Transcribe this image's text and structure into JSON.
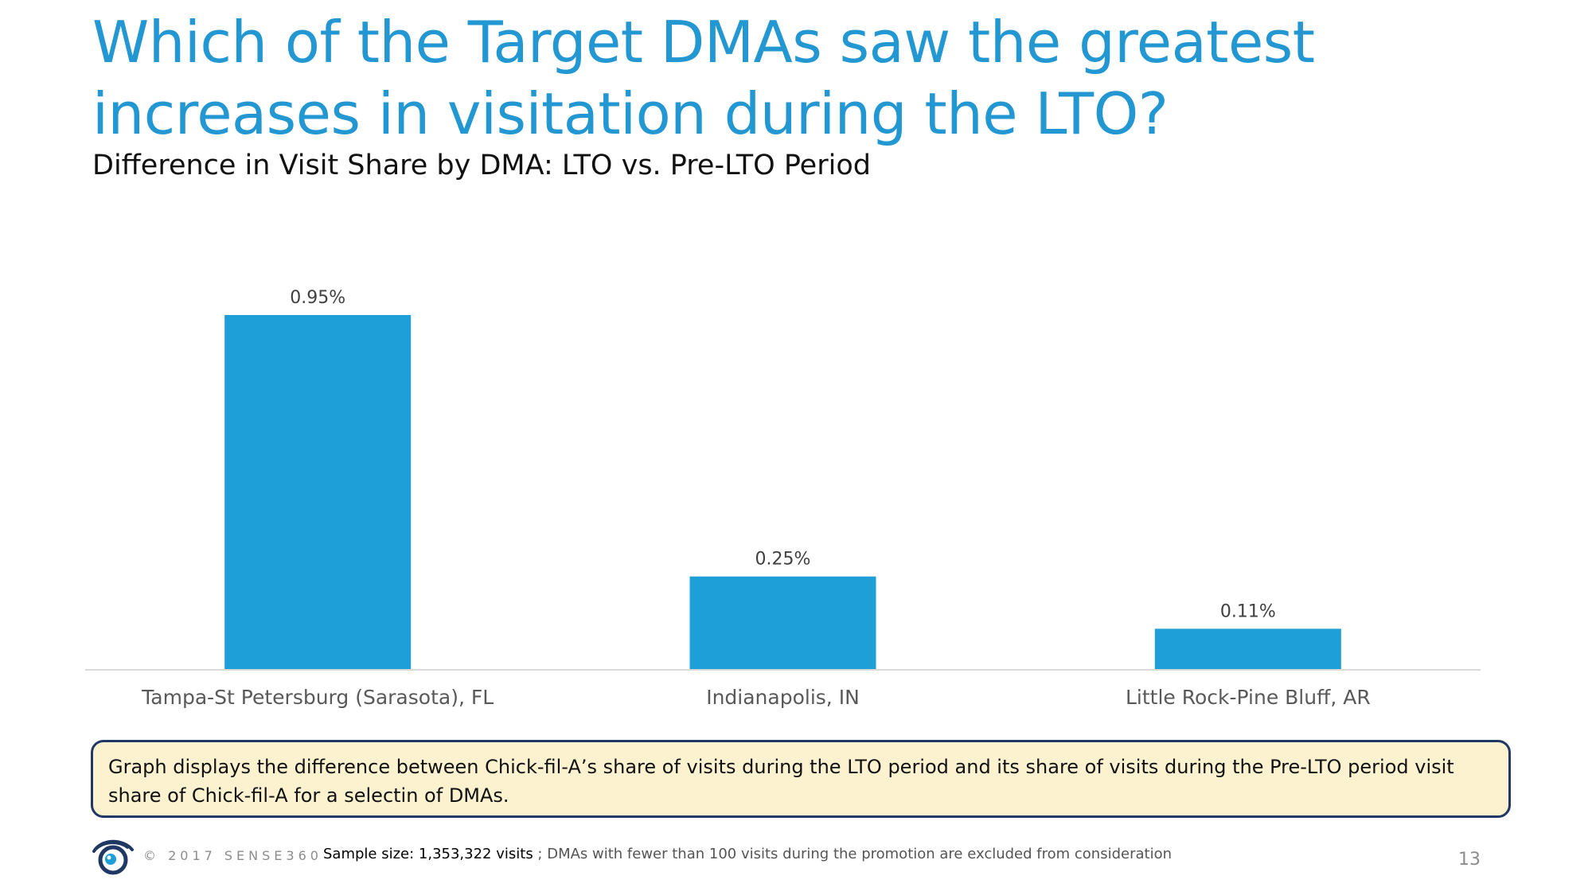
{
  "slide": {
    "title": "Which of the Target DMAs saw the greatest increases in visitation during the LTO?",
    "subtitle": "Difference in Visit Share by DMA: LTO vs. Pre-LTO Period"
  },
  "chart_data": {
    "type": "bar",
    "categories": [
      "Tampa-St Petersburg (Sarasota), FL",
      "Indianapolis, IN",
      "Little Rock-Pine Bluff, AR"
    ],
    "values": [
      0.95,
      0.25,
      0.11
    ],
    "value_labels": [
      "0.95%",
      "0.25%",
      "0.11%"
    ],
    "unit": "%",
    "ylim": [
      0,
      0.95
    ],
    "grid": false,
    "legend": "none",
    "bar_color": "#1e9fd8"
  },
  "note": {
    "text": "Graph displays the difference between Chick-fil-A’s share of visits during the LTO period and its share of visits during the Pre-LTO period visit share of Chick-fil-A for a selectin of DMAs."
  },
  "footer": {
    "copyright": "© 2017 SENSE360",
    "sample_lead": "Sample size: 1,353,322 visits",
    "sample_rest": " ; DMAs with fewer than 100 visits during the promotion are excluded from consideration",
    "page_number": "13"
  },
  "colors": {
    "title": "#2397d2",
    "bar": "#1e9fd8",
    "note_background": "#fdf2cf",
    "note_border": "#1f3864",
    "logo": "#1f3864"
  },
  "icons": {
    "logo": "sense360-eye-logo"
  }
}
